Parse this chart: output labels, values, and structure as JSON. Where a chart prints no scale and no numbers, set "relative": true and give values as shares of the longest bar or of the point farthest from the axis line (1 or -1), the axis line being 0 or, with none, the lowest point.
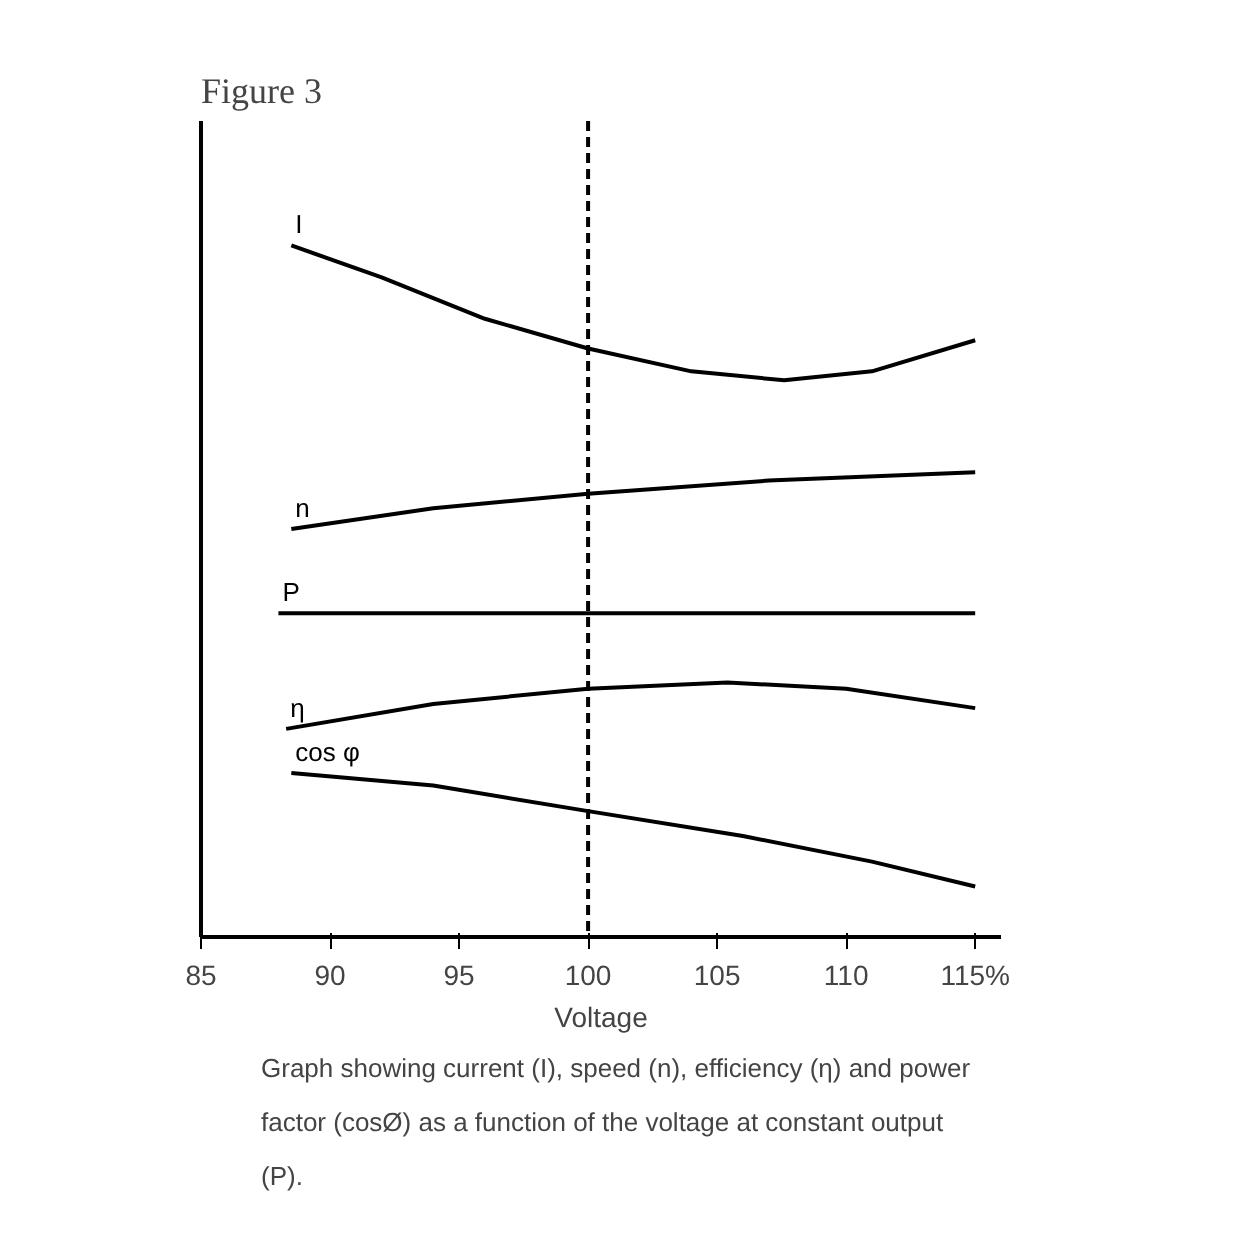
{
  "chart_data": {
    "type": "line",
    "title": "Figure 3",
    "xlabel": "Voltage",
    "relative": true,
    "xlim": [
      85,
      116
    ],
    "xticks": [
      85,
      90,
      95,
      100,
      105,
      110,
      {
        "value": 115,
        "label": "115%"
      }
    ],
    "grid": false,
    "marker": "none",
    "line_style": "solid",
    "ref_lines": [
      {
        "axis": "x",
        "value": 100,
        "line_style": "dashed",
        "color": "#000000"
      }
    ],
    "series": [
      {
        "name": "I",
        "color": "#000000",
        "x": [
          88.5,
          92,
          96,
          100,
          104,
          107.6,
          111,
          115
        ],
        "values": [
          1.0,
          0.954,
          0.894,
          0.851,
          0.818,
          0.805,
          0.818,
          0.863
        ]
      },
      {
        "name": "n",
        "color": "#000000",
        "x": [
          88.5,
          94,
          100,
          107,
          115
        ],
        "values": [
          0.59,
          0.62,
          0.641,
          0.66,
          0.672
        ]
      },
      {
        "name": "P",
        "color": "#000000",
        "x": [
          88,
          115
        ],
        "values": [
          0.468,
          0.468
        ]
      },
      {
        "name": "η",
        "color": "#000000",
        "x": [
          88.3,
          94,
          100,
          105.4,
          110,
          115
        ],
        "values": [
          0.301,
          0.337,
          0.359,
          0.368,
          0.359,
          0.331
        ]
      },
      {
        "name": "cos φ",
        "color": "#000000",
        "x": [
          88.5,
          94,
          100,
          106,
          111,
          115
        ],
        "values": [
          0.237,
          0.219,
          0.182,
          0.146,
          0.109,
          0.073
        ]
      }
    ],
    "annotations": [
      "Graph showing current (I), speed (n), efficiency (η) and power factor (cosØ) as a function of the voltage at constant output (P)."
    ]
  }
}
